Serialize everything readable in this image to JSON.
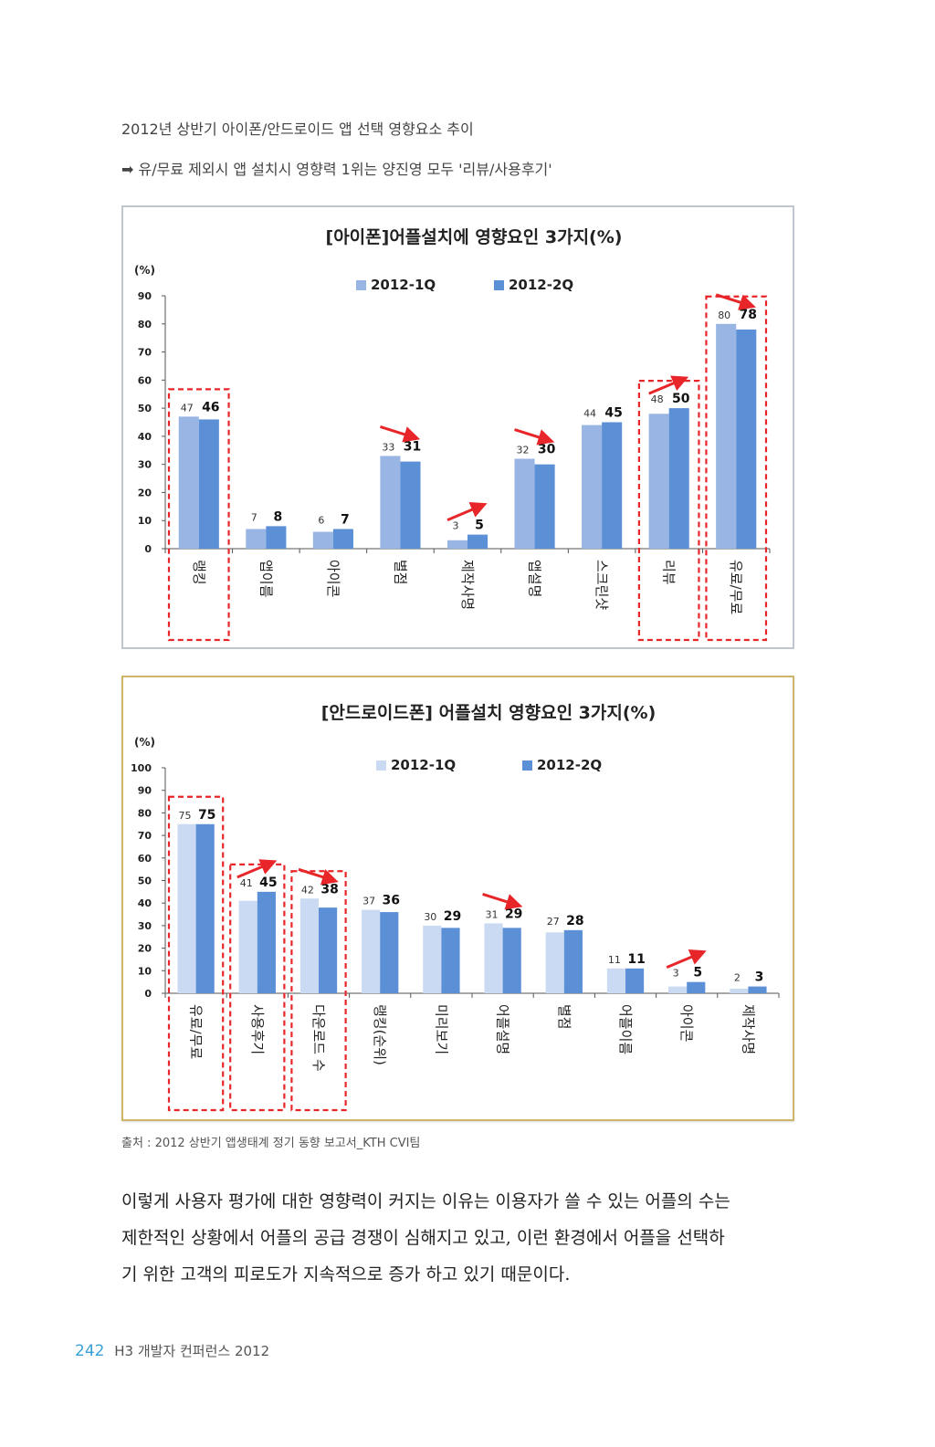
{
  "header": {
    "line1": "2012년 상반기 아이폰/안드로이드 앱 선택 영향요소 추이",
    "line2": "➡ 유/무료 제외시 앱 설치시 영향력 1위는 양진영 모두 '리뷰/사용후기'"
  },
  "colors": {
    "q1_iphone": "#99b5e4",
    "q2_iphone": "#5b8fd6",
    "q1_android": "#c9daf2",
    "q2_android": "#5b8fd6",
    "highlight": "#e8262a",
    "arrow": "#e8262a"
  },
  "chart_data": [
    {
      "type": "bar",
      "title": "[아이폰]어플설치에 영향요인 3가지(%)",
      "ylabel": "(%)",
      "ylim": [
        0,
        90
      ],
      "yticks": [
        0,
        10,
        20,
        30,
        40,
        50,
        60,
        70,
        80,
        90
      ],
      "categories": [
        "랭킹",
        "앱이름",
        "아이콘",
        "별점",
        "제작사명",
        "앱설명",
        "스크린샷",
        "리뷰",
        "유료/무료"
      ],
      "series": [
        {
          "name": "2012-1Q",
          "values": [
            47,
            7,
            6,
            33,
            3,
            32,
            44,
            48,
            80
          ]
        },
        {
          "name": "2012-2Q",
          "values": [
            46,
            8,
            7,
            31,
            5,
            30,
            45,
            50,
            78
          ]
        }
      ],
      "highlighted": [
        "랭킹",
        "리뷰",
        "유료/무료"
      ],
      "arrows": [
        {
          "category": "별점",
          "direction": "down"
        },
        {
          "category": "제작사명",
          "direction": "up"
        },
        {
          "category": "앱설명",
          "direction": "down"
        },
        {
          "category": "리뷰",
          "direction": "up"
        },
        {
          "category": "유료/무료",
          "direction": "down"
        }
      ],
      "legend_position": "top"
    },
    {
      "type": "bar",
      "title": "[안드로이드폰] 어플설치 영향요인 3가지(%)",
      "ylabel": "(%)",
      "ylim": [
        0,
        100
      ],
      "yticks": [
        0,
        10,
        20,
        30,
        40,
        50,
        60,
        70,
        80,
        90,
        100
      ],
      "categories": [
        "유료/무료",
        "사용후기",
        "다운로드 수",
        "랭킹(순위)",
        "미리보기",
        "어플설명",
        "별점",
        "어플이름",
        "아이콘",
        "제작사명"
      ],
      "series": [
        {
          "name": "2012-1Q",
          "values": [
            75,
            41,
            42,
            37,
            30,
            31,
            27,
            11,
            3,
            2
          ]
        },
        {
          "name": "2012-2Q",
          "values": [
            75,
            45,
            38,
            36,
            29,
            29,
            28,
            11,
            5,
            3
          ]
        }
      ],
      "highlighted": [
        "유료/무료",
        "사용후기",
        "다운로드 수"
      ],
      "arrows": [
        {
          "category": "사용후기",
          "direction": "up"
        },
        {
          "category": "다운로드 수",
          "direction": "down"
        },
        {
          "category": "어플설명",
          "direction": "down"
        },
        {
          "category": "아이콘",
          "direction": "up"
        }
      ],
      "legend_position": "top"
    }
  ],
  "source": "출처 : 2012 상반기 앱생태계 정기 동향 보고서_KTH CVI팀",
  "paragraph": [
    "이렇게 사용자 평가에 대한 영향력이 커지는 이유는 이용자가 쓸 수 있는 어플의 수는",
    "제한적인 상황에서 어플의 공급 경쟁이 심해지고 있고, 이런 환경에서 어플을 선택하",
    "기 위한 고객의 피로도가 지속적으로 증가 하고 있기 때문이다."
  ],
  "footer": {
    "page": "242",
    "title": "H3 개발자 컨퍼런스 2012"
  }
}
